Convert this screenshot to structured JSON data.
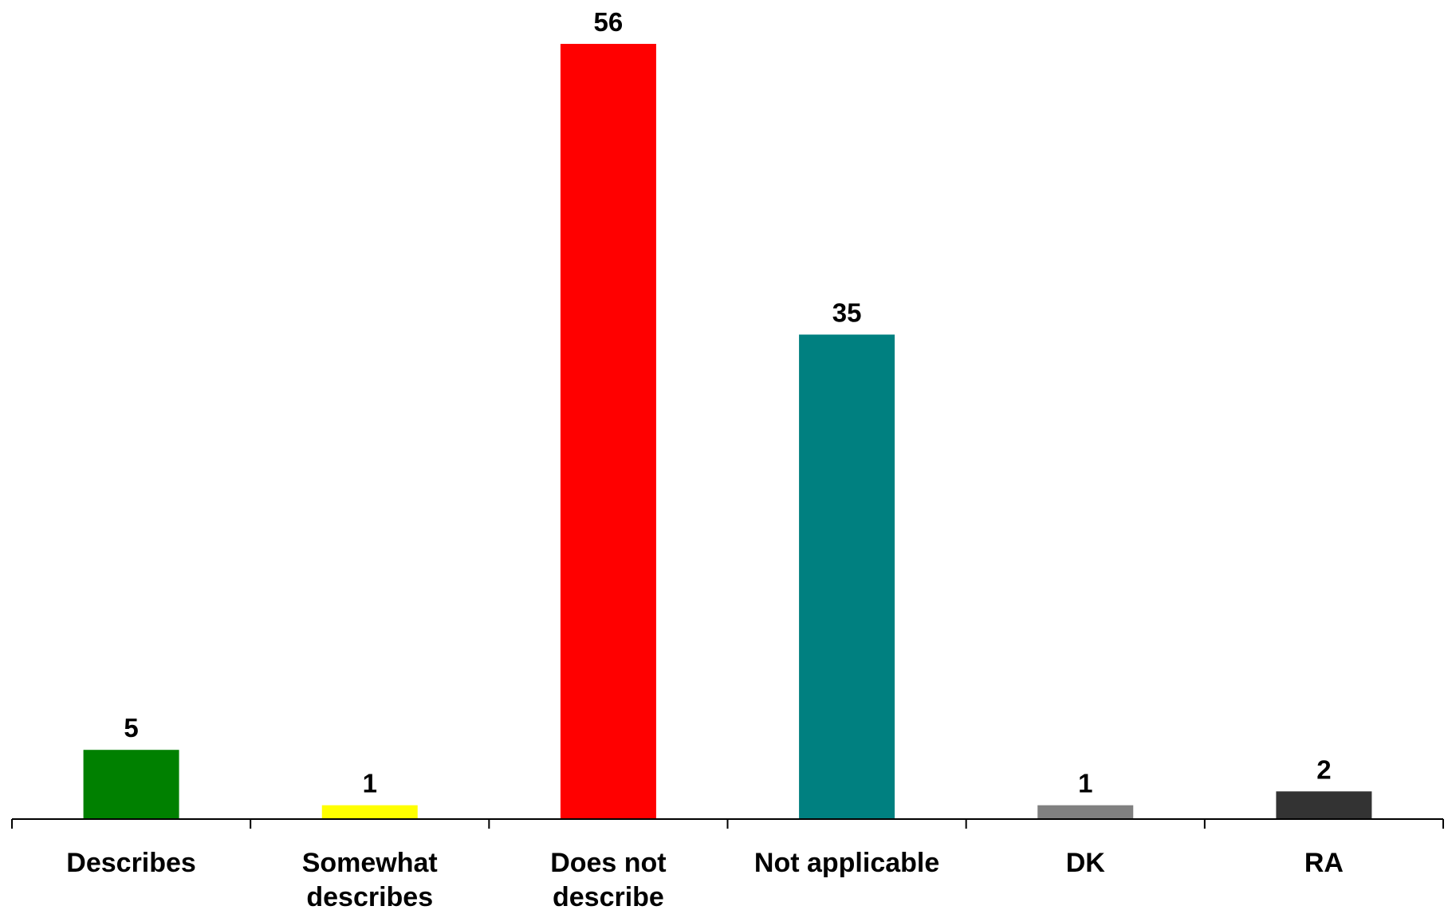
{
  "chart_data": {
    "type": "bar",
    "title": "",
    "xlabel": "",
    "ylabel": "",
    "ylim": [
      0,
      56
    ],
    "grid": false,
    "legend": "none",
    "categories": [
      [
        "Describes"
      ],
      [
        "Somewhat",
        "describes"
      ],
      [
        "Does not",
        "describe"
      ],
      [
        "Not applicable"
      ],
      [
        "DK"
      ],
      [
        "RA"
      ]
    ],
    "category_names": [
      "Describes",
      "Somewhat describes",
      "Does not describe",
      "Not applicable",
      "DK",
      "RA"
    ],
    "values": [
      5,
      1,
      56,
      35,
      1,
      2
    ],
    "value_labels": [
      "5",
      "1",
      "56",
      "35",
      "1",
      "2"
    ],
    "colors": [
      "#008000",
      "#FFFF00",
      "#FF0000",
      "#008080",
      "#808080",
      "#333333"
    ]
  }
}
